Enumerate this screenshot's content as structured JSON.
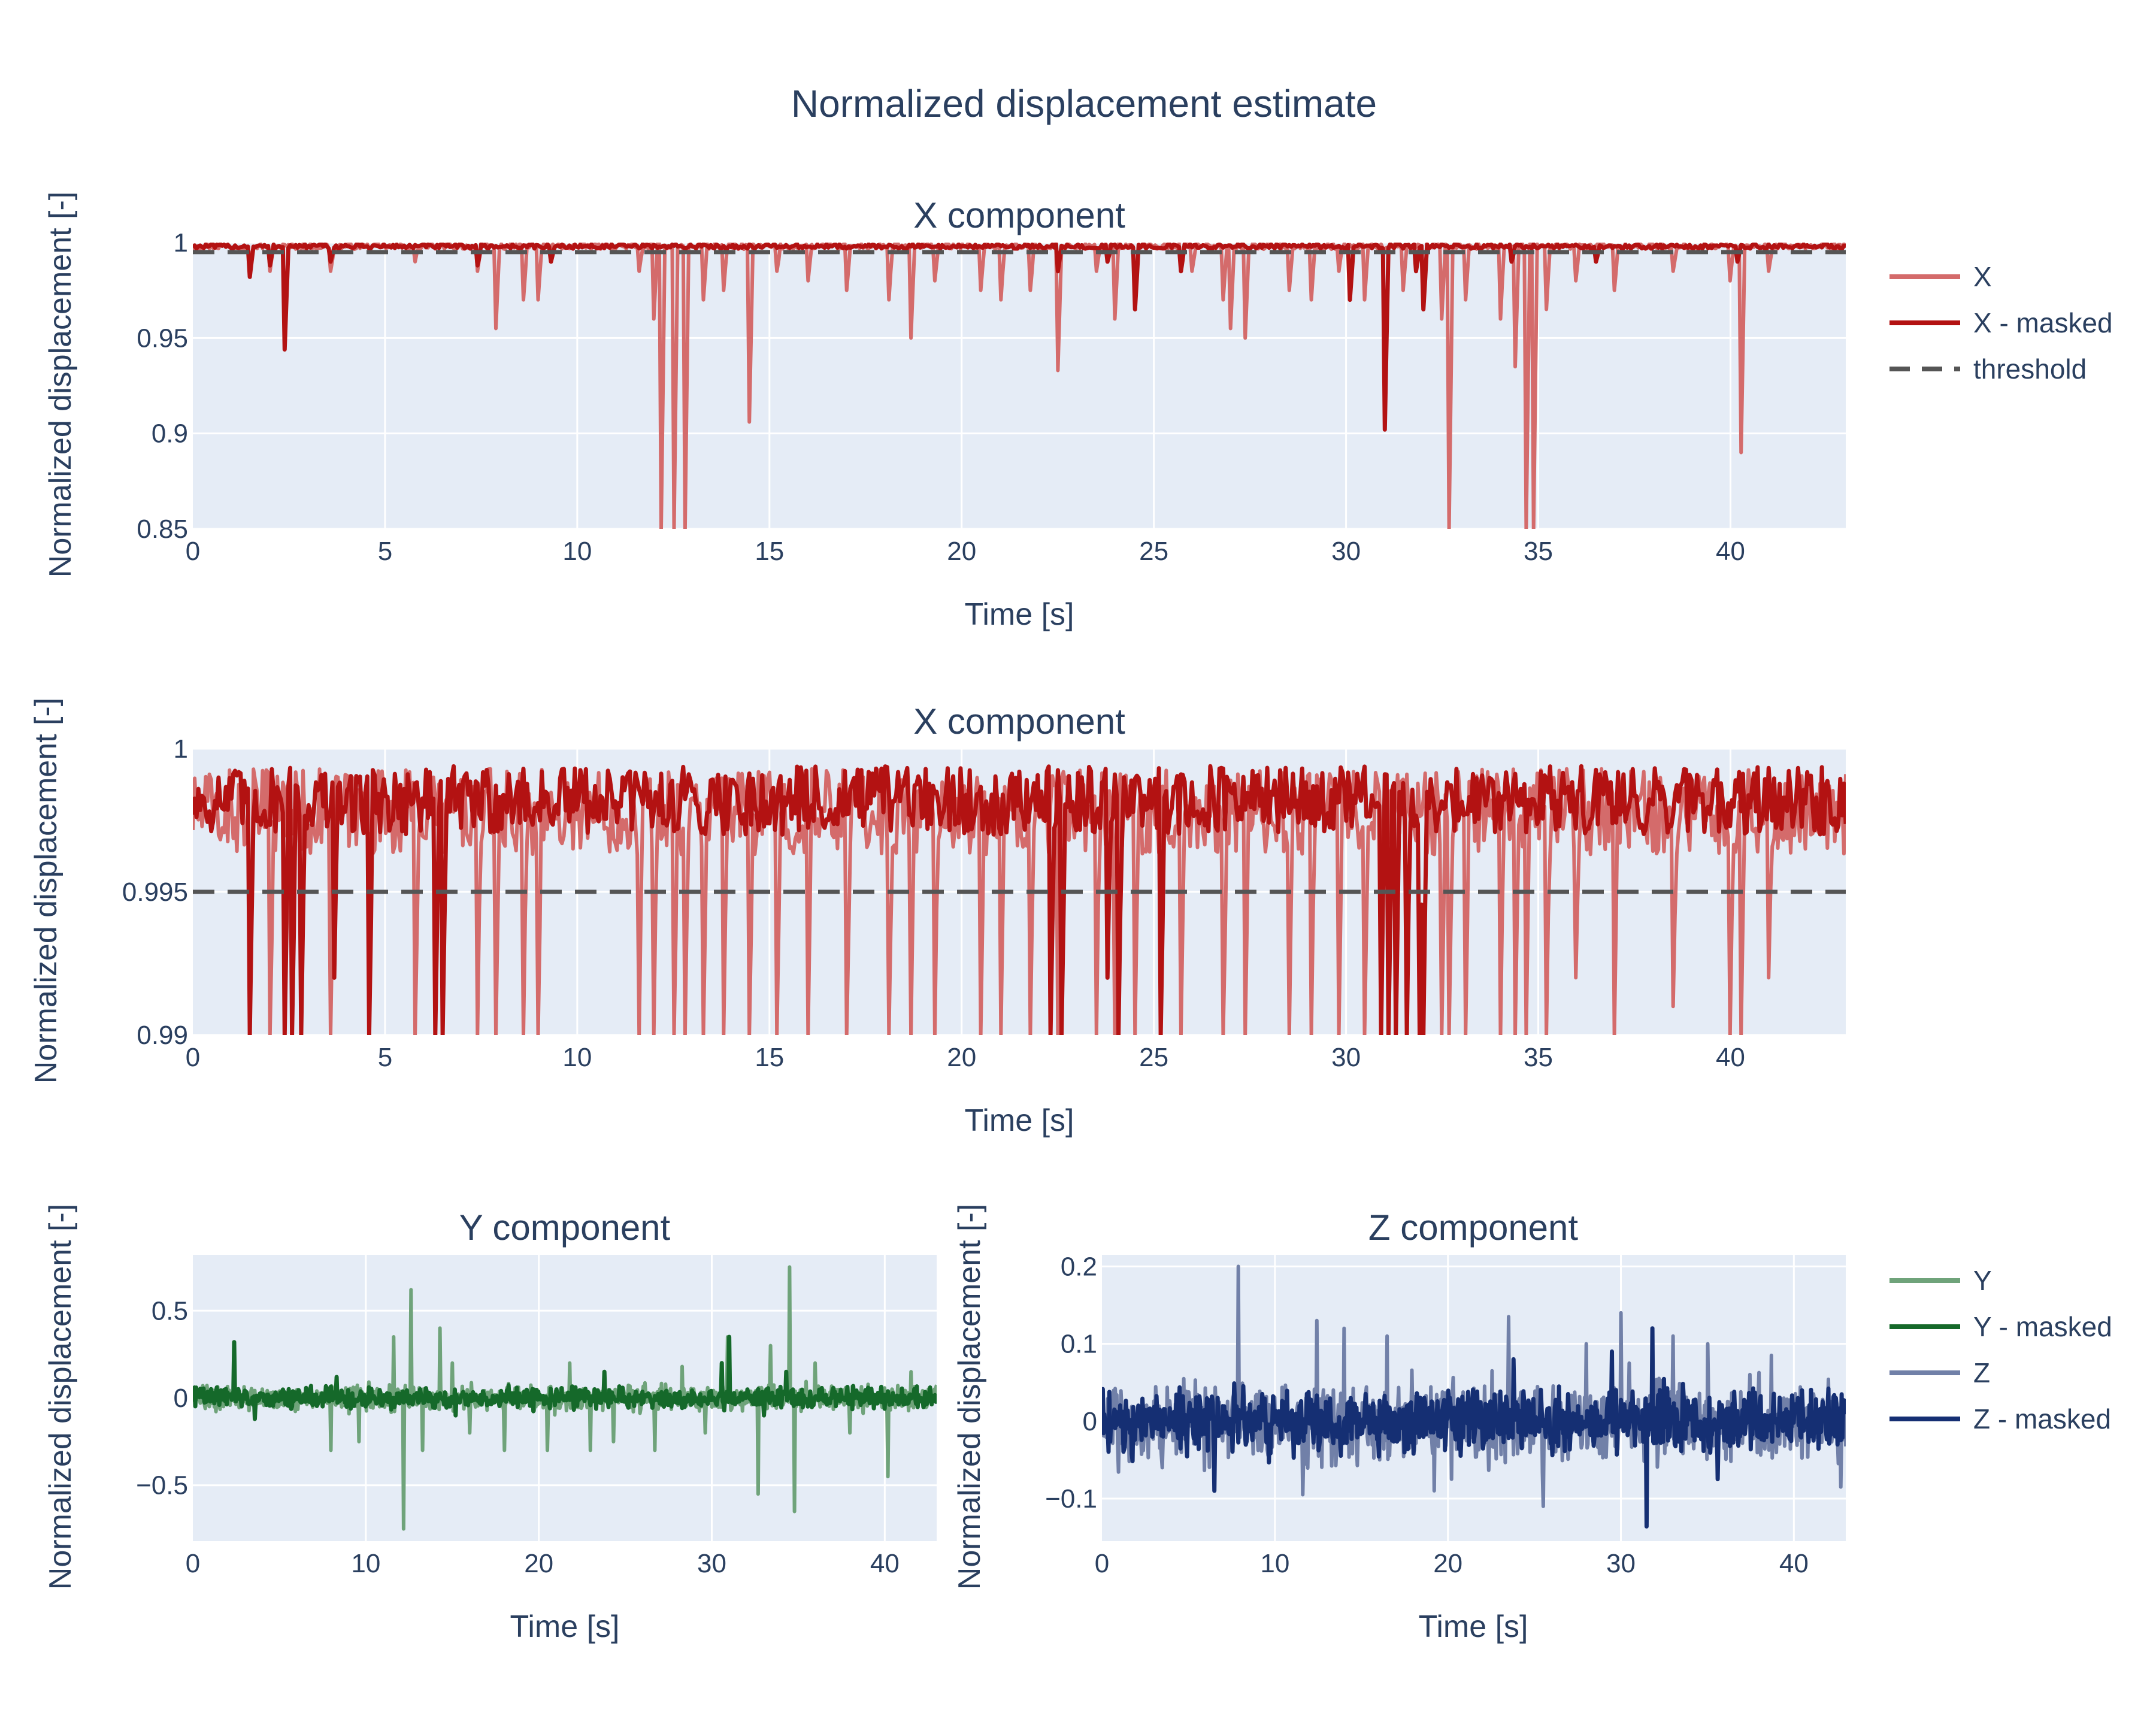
{
  "figure": {
    "title": "Normalized displacement estimate",
    "colors": {
      "plot_bg": "#e5ecf6",
      "grid": "#ffffff",
      "text": "#2a3f5f",
      "x_raw": "#d46b6b",
      "x_masked": "#b31212",
      "threshold": "#555555",
      "y_raw": "#6fa37a",
      "y_masked": "#15692a",
      "z_raw": "#7180a8",
      "z_masked": "#152f73"
    }
  },
  "legend_top": {
    "placement": "right",
    "items": [
      {
        "label": "X",
        "color": "#d46b6b",
        "dash": false
      },
      {
        "label": "X - masked",
        "color": "#b31212",
        "dash": false
      },
      {
        "label": "threshold",
        "color": "#555555",
        "dash": true
      }
    ]
  },
  "legend_bottom": {
    "placement": "right",
    "items": [
      {
        "label": "Y",
        "color": "#6fa37a",
        "dash": false
      },
      {
        "label": "Y - masked",
        "color": "#15692a",
        "dash": false
      },
      {
        "label": "Z",
        "color": "#7180a8",
        "dash": false
      },
      {
        "label": "Z - masked",
        "color": "#152f73",
        "dash": false
      }
    ]
  },
  "chart_data": [
    {
      "type": "line",
      "title": "X component",
      "xlabel": "Time [s]",
      "ylabel": "Normalized displacement [-]",
      "xlim": [
        0,
        43
      ],
      "ylim": [
        0.85,
        1.0
      ],
      "xticks": [
        0,
        5,
        10,
        15,
        20,
        25,
        30,
        35,
        40
      ],
      "yticks": [
        0.85,
        0.9,
        0.95,
        1
      ],
      "ytick_labels": [
        "0.85",
        "0.9",
        "0.95",
        "1"
      ],
      "grid": true,
      "series": [
        {
          "name": "X",
          "color": "#d46b6b",
          "baseline": 0.998,
          "noise": 0.0015,
          "dips": [
            [
              1.5,
              0.99
            ],
            [
              2.0,
              0.985
            ],
            [
              3.6,
              0.985
            ],
            [
              5.8,
              0.99
            ],
            [
              7.4,
              0.985
            ],
            [
              7.9,
              0.955
            ],
            [
              8.6,
              0.97
            ],
            [
              9.0,
              0.97
            ],
            [
              11.6,
              0.985
            ],
            [
              12.0,
              0.96
            ],
            [
              12.2,
              0.85
            ],
            [
              12.5,
              0.85
            ],
            [
              12.8,
              0.85
            ],
            [
              13.3,
              0.97
            ],
            [
              13.8,
              0.975
            ],
            [
              14.5,
              0.906
            ],
            [
              15.2,
              0.985
            ],
            [
              16.0,
              0.98
            ],
            [
              17.0,
              0.975
            ],
            [
              18.1,
              0.97
            ],
            [
              18.7,
              0.95
            ],
            [
              19.3,
              0.98
            ],
            [
              20.5,
              0.975
            ],
            [
              21.0,
              0.97
            ],
            [
              21.8,
              0.975
            ],
            [
              22.5,
              0.933
            ],
            [
              23.5,
              0.985
            ],
            [
              24.0,
              0.96
            ],
            [
              24.5,
              0.965
            ],
            [
              25.7,
              0.985
            ],
            [
              26.0,
              0.985
            ],
            [
              26.8,
              0.97
            ],
            [
              27.0,
              0.955
            ],
            [
              27.4,
              0.95
            ],
            [
              28.5,
              0.975
            ],
            [
              29.1,
              0.97
            ],
            [
              29.8,
              0.985
            ],
            [
              30.5,
              0.97
            ],
            [
              31.5,
              0.975
            ],
            [
              32.0,
              0.97
            ],
            [
              32.5,
              0.96
            ],
            [
              32.7,
              0.85
            ],
            [
              33.1,
              0.97
            ],
            [
              34.0,
              0.96
            ],
            [
              34.4,
              0.935
            ],
            [
              34.7,
              0.85
            ],
            [
              34.9,
              0.85
            ],
            [
              35.2,
              0.965
            ],
            [
              36.0,
              0.98
            ],
            [
              37.0,
              0.975
            ],
            [
              38.5,
              0.985
            ],
            [
              40.0,
              0.98
            ],
            [
              40.3,
              0.89
            ],
            [
              41.0,
              0.985
            ]
          ]
        },
        {
          "name": "X - masked",
          "color": "#b31212",
          "baseline": 0.998,
          "noise": 0.0012,
          "dips": [
            [
              2.4,
              0.944
            ],
            [
              1.5,
              0.982
            ],
            [
              2.0,
              0.988
            ],
            [
              3.6,
              0.99
            ],
            [
              7.4,
              0.988
            ],
            [
              9.3,
              0.99
            ],
            [
              22.5,
              0.985
            ],
            [
              23.8,
              0.99
            ],
            [
              24.5,
              0.965
            ],
            [
              25.7,
              0.985
            ],
            [
              30.1,
              0.97
            ],
            [
              31.0,
              0.902
            ],
            [
              31.8,
              0.985
            ],
            [
              32.0,
              0.965
            ],
            [
              34.3,
              0.99
            ],
            [
              36.5,
              0.99
            ],
            [
              40.2,
              0.99
            ]
          ]
        },
        {
          "name": "threshold",
          "color": "#555555",
          "constant": 0.995,
          "dash": true
        }
      ]
    },
    {
      "type": "line",
      "title": "X component",
      "xlabel": "Time [s]",
      "ylabel": "Normalized displacement [-]",
      "xlim": [
        0,
        43
      ],
      "ylim": [
        0.99,
        1.0
      ],
      "xticks": [
        0,
        5,
        10,
        15,
        20,
        25,
        30,
        35,
        40
      ],
      "yticks": [
        0.99,
        0.995,
        1
      ],
      "ytick_labels": [
        "0.99",
        "0.995",
        "1"
      ],
      "grid": true,
      "series": [
        {
          "name": "X",
          "color": "#d46b6b",
          "baseline": 0.9978,
          "noise": 0.0015,
          "dips": [
            [
              1.5,
              0.99
            ],
            [
              2.0,
              0.99
            ],
            [
              3.6,
              0.99
            ],
            [
              5.8,
              0.99
            ],
            [
              7.4,
              0.99
            ],
            [
              7.9,
              0.99
            ],
            [
              8.6,
              0.99
            ],
            [
              9.0,
              0.99
            ],
            [
              11.6,
              0.99
            ],
            [
              12.0,
              0.99
            ],
            [
              12.5,
              0.99
            ],
            [
              12.8,
              0.99
            ],
            [
              13.3,
              0.99
            ],
            [
              13.8,
              0.99
            ],
            [
              14.5,
              0.99
            ],
            [
              15.2,
              0.99
            ],
            [
              16.0,
              0.99
            ],
            [
              17.0,
              0.99
            ],
            [
              18.1,
              0.99
            ],
            [
              18.7,
              0.99
            ],
            [
              19.3,
              0.99
            ],
            [
              20.5,
              0.99
            ],
            [
              21.0,
              0.99
            ],
            [
              21.8,
              0.99
            ],
            [
              22.5,
              0.99
            ],
            [
              23.5,
              0.99
            ],
            [
              24.0,
              0.99
            ],
            [
              24.5,
              0.99
            ],
            [
              25.7,
              0.99
            ],
            [
              26.8,
              0.99
            ],
            [
              27.4,
              0.99
            ],
            [
              28.5,
              0.99
            ],
            [
              29.1,
              0.99
            ],
            [
              29.8,
              0.99
            ],
            [
              30.5,
              0.99
            ],
            [
              32.5,
              0.99
            ],
            [
              32.7,
              0.99
            ],
            [
              33.1,
              0.99
            ],
            [
              34.0,
              0.99
            ],
            [
              34.4,
              0.99
            ],
            [
              34.7,
              0.99
            ],
            [
              35.2,
              0.99
            ],
            [
              36.0,
              0.992
            ],
            [
              37.0,
              0.99
            ],
            [
              38.5,
              0.991
            ],
            [
              40.0,
              0.99
            ],
            [
              40.3,
              0.99
            ],
            [
              41.0,
              0.992
            ]
          ]
        },
        {
          "name": "X - masked",
          "color": "#b31212",
          "baseline": 0.9982,
          "noise": 0.0012,
          "dips": [
            [
              1.5,
              0.99
            ],
            [
              2.4,
              0.99
            ],
            [
              2.6,
              0.99
            ],
            [
              2.8,
              0.99
            ],
            [
              3.7,
              0.992
            ],
            [
              4.6,
              0.99
            ],
            [
              6.3,
              0.99
            ],
            [
              6.5,
              0.99
            ],
            [
              22.3,
              0.99
            ],
            [
              22.6,
              0.99
            ],
            [
              23.8,
              0.992
            ],
            [
              24.1,
              0.99
            ],
            [
              25.2,
              0.99
            ],
            [
              30.9,
              0.99
            ],
            [
              31.1,
              0.99
            ],
            [
              31.3,
              0.99
            ],
            [
              31.6,
              0.99
            ],
            [
              31.9,
              0.99
            ],
            [
              32.0,
              0.99
            ]
          ]
        },
        {
          "name": "threshold",
          "color": "#555555",
          "constant": 0.995,
          "dash": true
        }
      ]
    },
    {
      "type": "line",
      "title": "Y component",
      "xlabel": "Time [s]",
      "ylabel": "Normalized displacement [-]",
      "xlim": [
        0,
        43
      ],
      "ylim": [
        -0.82,
        0.82
      ],
      "xticks": [
        0,
        10,
        20,
        30,
        40
      ],
      "yticks": [
        -0.5,
        0,
        0.5
      ],
      "ytick_labels": [
        "−0.5",
        "0",
        "0.5"
      ],
      "grid": true,
      "series": [
        {
          "name": "Y",
          "color": "#6fa37a",
          "noise": 0.05,
          "spikes": [
            [
              8.0,
              -0.3
            ],
            [
              9.6,
              -0.25
            ],
            [
              11.6,
              0.35
            ],
            [
              12.2,
              -0.75
            ],
            [
              12.6,
              0.62
            ],
            [
              13.3,
              -0.3
            ],
            [
              14.3,
              0.4
            ],
            [
              15.0,
              0.2
            ],
            [
              16.0,
              -0.2
            ],
            [
              18.0,
              -0.3
            ],
            [
              20.5,
              -0.3
            ],
            [
              21.8,
              0.2
            ],
            [
              23.0,
              -0.3
            ],
            [
              24.3,
              -0.25
            ],
            [
              26.7,
              -0.3
            ],
            [
              28.3,
              0.18
            ],
            [
              29.6,
              -0.2
            ],
            [
              30.9,
              0.35
            ],
            [
              32.7,
              -0.55
            ],
            [
              33.4,
              0.3
            ],
            [
              34.5,
              0.75
            ],
            [
              34.8,
              -0.65
            ],
            [
              36.0,
              0.2
            ],
            [
              38.0,
              -0.2
            ],
            [
              40.2,
              -0.45
            ],
            [
              41.5,
              0.15
            ]
          ]
        },
        {
          "name": "Y - masked",
          "color": "#15692a",
          "noise": 0.04,
          "spikes": [
            [
              2.4,
              0.32
            ],
            [
              3.6,
              -0.12
            ],
            [
              8.3,
              0.12
            ],
            [
              15.2,
              -0.1
            ],
            [
              23.8,
              0.15
            ],
            [
              30.6,
              0.2
            ],
            [
              31.0,
              0.35
            ],
            [
              33.0,
              -0.1
            ],
            [
              34.3,
              0.15
            ]
          ]
        }
      ]
    },
    {
      "type": "line",
      "title": "Z component",
      "xlabel": "Time [s]",
      "ylabel": "Normalized displacement [-]",
      "xlim": [
        0,
        43
      ],
      "ylim": [
        -0.155,
        0.215
      ],
      "xticks": [
        0,
        10,
        20,
        30,
        40
      ],
      "yticks": [
        -0.1,
        0,
        0.1,
        0.2
      ],
      "ytick_labels": [
        "−0.1",
        "0",
        "0.1",
        "0.2"
      ],
      "grid": true,
      "series": [
        {
          "name": "Z",
          "color": "#7180a8",
          "noise": 0.035,
          "spikes": [
            [
              7.9,
              0.2
            ],
            [
              11.6,
              -0.095
            ],
            [
              12.4,
              0.13
            ],
            [
              14.0,
              0.12
            ],
            [
              16.5,
              0.11
            ],
            [
              19.2,
              -0.09
            ],
            [
              20.2,
              -0.075
            ],
            [
              23.5,
              0.135
            ],
            [
              25.5,
              -0.11
            ],
            [
              28.0,
              0.1
            ],
            [
              30.0,
              0.14
            ],
            [
              30.5,
              0.075
            ],
            [
              33.0,
              0.11
            ],
            [
              35.0,
              0.1
            ],
            [
              38.7,
              0.085
            ],
            [
              42.7,
              -0.085
            ]
          ]
        },
        {
          "name": "Z - masked",
          "color": "#152f73",
          "noise": 0.028,
          "spikes": [
            [
              6.5,
              -0.09
            ],
            [
              23.8,
              0.08
            ],
            [
              29.5,
              0.09
            ],
            [
              31.5,
              -0.136
            ],
            [
              31.8,
              0.12
            ],
            [
              35.6,
              -0.075
            ]
          ]
        }
      ]
    }
  ]
}
